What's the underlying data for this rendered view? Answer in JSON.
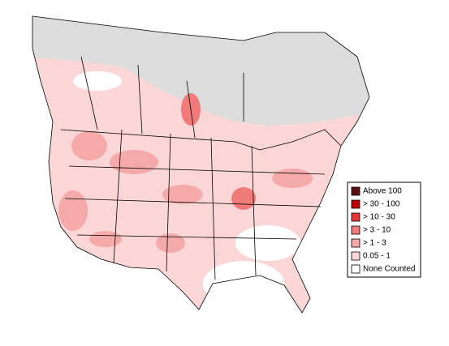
{
  "legend": {
    "items": [
      {
        "label": "Above 100",
        "color": "#5a1010"
      },
      {
        "label": "> 30 - 100",
        "color": "#c00000"
      },
      {
        "label": "> 10 - 30",
        "color": "#e83434"
      },
      {
        "label": "> 3 - 10",
        "color": "#f07a7a"
      },
      {
        "label": "> 1 - 3",
        "color": "#f5aaaa"
      },
      {
        "label": "0.05 - 1",
        "color": "#fbd6d6"
      },
      {
        "label": "None Counted",
        "color": "#ffffff"
      }
    ]
  }
}
